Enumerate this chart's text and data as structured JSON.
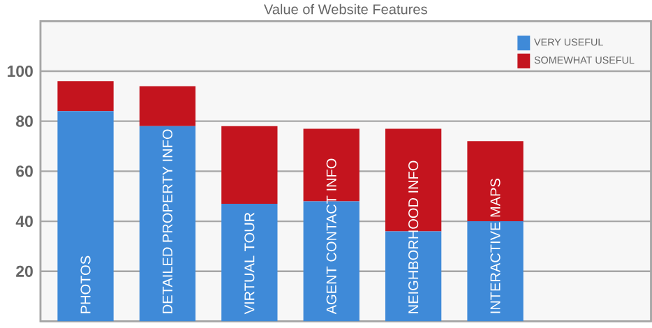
{
  "chart_data": {
    "type": "bar",
    "stacked": true,
    "title": "Value of Website Features",
    "categories": [
      "PHOTOS",
      "DETAILED PROPERTY INFO",
      "VIRTUAL TOUR",
      "AGENT CONTACT INFO",
      "NEIGHBORHOOD INFO",
      "INTERACTIVE MAPS"
    ],
    "series": [
      {
        "name": "VERY USEFUL",
        "color": "#3f8ad8",
        "values": [
          84,
          78,
          47,
          48,
          36,
          40
        ]
      },
      {
        "name": "SOMEWHAT USEFUL",
        "color": "#c4141e",
        "values": [
          12,
          16,
          31,
          29,
          41,
          32
        ]
      }
    ],
    "ylim": [
      0,
      120
    ],
    "yticks": [
      {
        "value": 0,
        "label": null
      },
      20,
      40,
      60,
      80,
      100,
      {
        "value": 120,
        "label": null
      }
    ],
    "tick_labels": "y",
    "grid": "y",
    "legend": "top right"
  }
}
